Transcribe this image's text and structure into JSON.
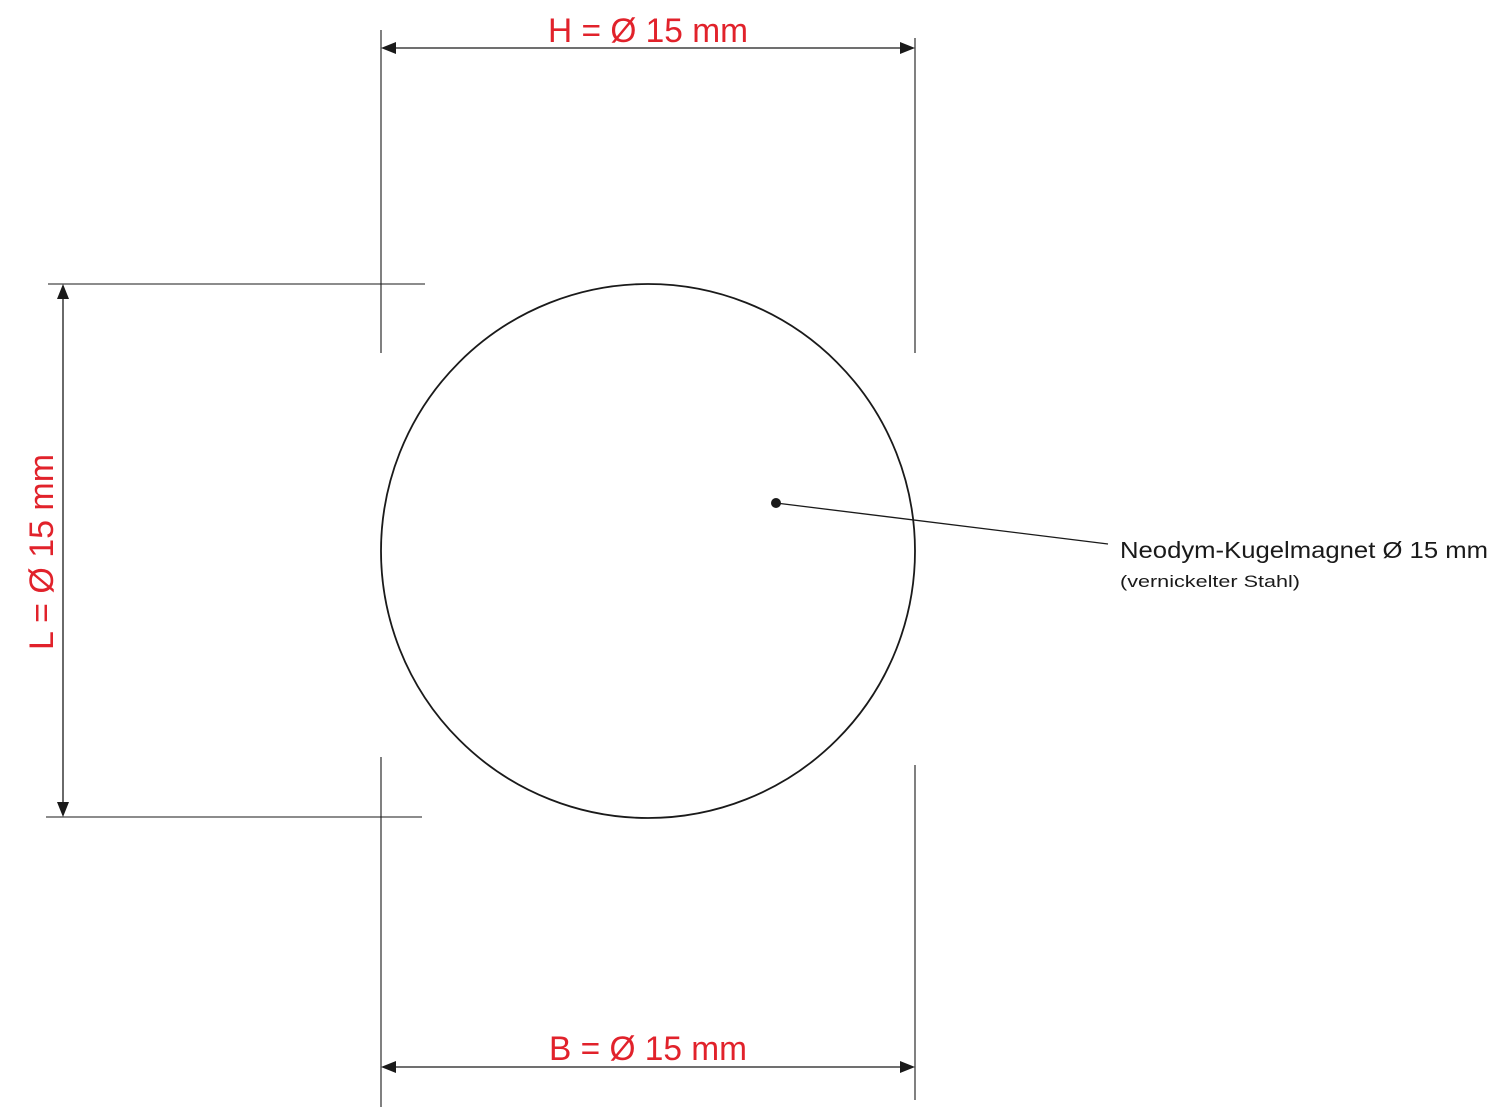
{
  "dimensions": {
    "height_label": "H = Ø 15 mm",
    "length_label": "L = Ø 15 mm",
    "width_label": "B = Ø 15 mm"
  },
  "callout": {
    "title": "Neodym-Kugelmagnet Ø 15 mm",
    "subtitle": "(vernickelter Stahl)"
  },
  "colors": {
    "dimension_text": "#e1222b",
    "line": "#1a1a1a",
    "background": "#ffffff"
  }
}
